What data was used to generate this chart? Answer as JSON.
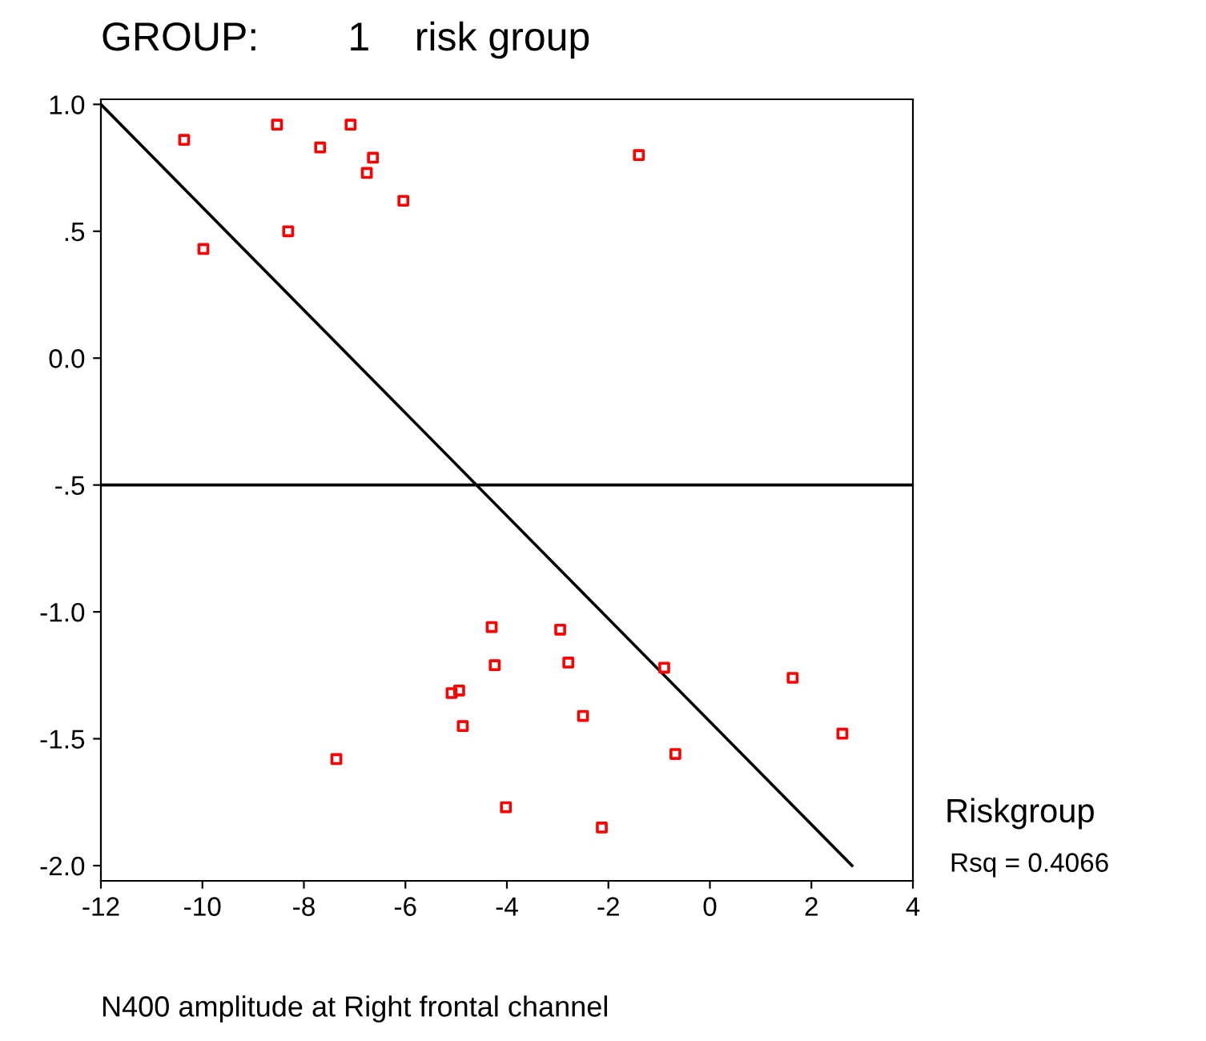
{
  "chart_data": {
    "type": "scatter",
    "title": "GROUP:        1    risk group",
    "xlabel": "N400 amplitude at Right frontal channel",
    "xlim": [
      -12,
      4
    ],
    "xticks": [
      -12,
      -10,
      -8,
      -6,
      -4,
      -2,
      0,
      2,
      4
    ],
    "ylim": [
      -2.06,
      1.02
    ],
    "yticks": [
      {
        "value": 1.0,
        "label": "1.0"
      },
      {
        "value": 0.5,
        "label": ".5"
      },
      {
        "value": 0.0,
        "label": "0.0"
      },
      {
        "value": -0.5,
        "label": "-.5"
      },
      {
        "value": -1.0,
        "label": "-1.0"
      },
      {
        "value": -1.5,
        "label": "-1.5"
      },
      {
        "value": -2.0,
        "label": "-2.0"
      }
    ],
    "grid": false,
    "legend": false,
    "series": [
      {
        "color": "#ff0000",
        "marker": "square",
        "x": [
          -10.36,
          -9.98,
          -8.53,
          -8.31,
          -7.68,
          -7.08,
          -6.64,
          -6.76,
          -6.04,
          -1.4,
          -4.3,
          -4.24,
          -5.09,
          -4.94,
          -4.87,
          -7.36,
          -4.02,
          -2.95,
          -2.79,
          -2.5,
          -2.13,
          -0.9,
          -0.68,
          1.63,
          2.61
        ],
        "values": [
          0.86,
          0.43,
          0.92,
          0.5,
          0.83,
          0.92,
          0.79,
          0.73,
          0.62,
          0.8,
          -1.06,
          -1.21,
          -1.32,
          -1.31,
          -1.45,
          -1.58,
          -1.77,
          -1.07,
          -1.2,
          -1.41,
          -1.85,
          -1.22,
          -1.56,
          -1.26,
          -1.48
        ]
      },
      {
        "type": "line",
        "color": "#000000",
        "line_style": "solid",
        "x": [
          -12,
          2.8
        ],
        "values": [
          1.0,
          -2.0
        ]
      }
    ],
    "ref_lines": [
      {
        "axis": "y",
        "value": -0.5,
        "color": "#000000"
      }
    ],
    "annotations": [
      "Riskgroup",
      "Rsq = 0.4066"
    ]
  }
}
